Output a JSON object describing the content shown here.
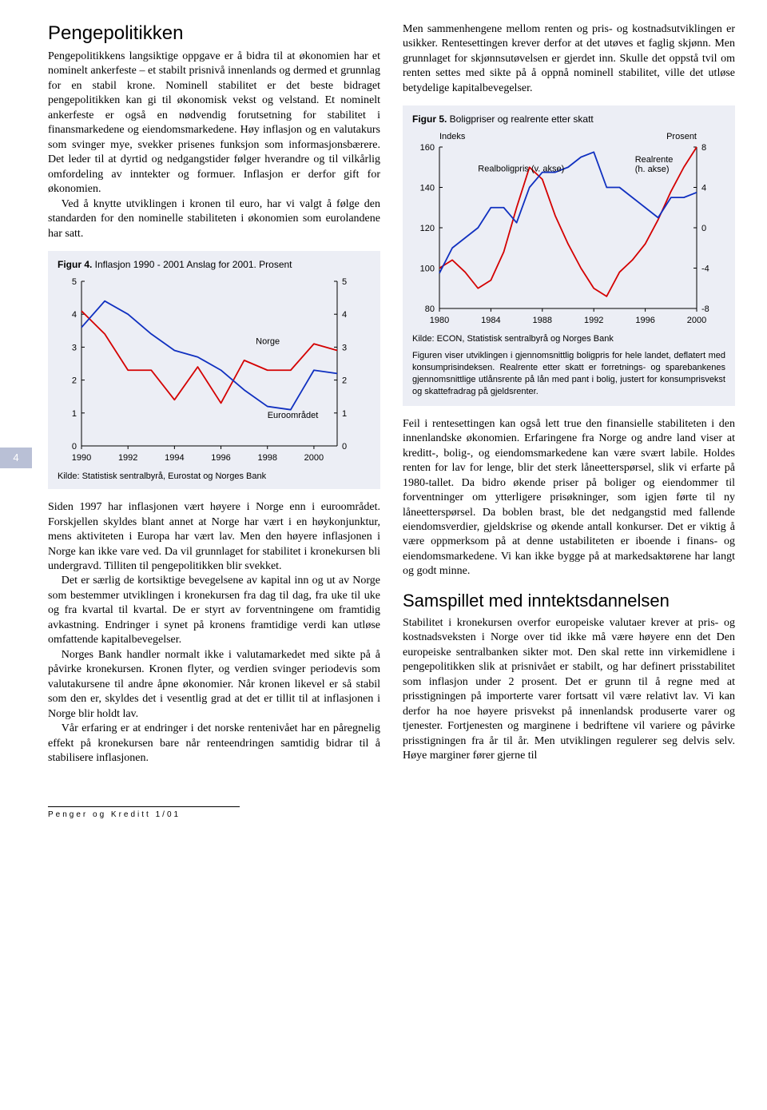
{
  "page_number": "4",
  "left": {
    "heading": "Pengepolitikken",
    "p1": "Pengepolitikkens langsiktige oppgave er å bidra til at økonomien har et nominelt ankerfeste – et stabilt prisnivå innenlands og dermed et grunnlag for en stabil krone. Nominell stabilitet er det beste bidraget pengepolitikken kan gi til økonomisk vekst og velstand. Et nominelt ankerfeste er også en nødvendig forutsetning for stabilitet i finansmarkedene og eiendomsmarkedene. Høy inflasjon og en valutakurs som svinger mye, svekker prisenes funksjon som informasjonsbærere. Det leder til at dyrtid og nedgangstider følger hverandre og til vilkårlig omfordeling av inntekter og formuer. Inflasjon er derfor gift for økonomien.",
    "p2": "Ved å knytte utviklingen i kronen til euro, har vi valgt å følge den standarden for den nominelle stabiliteten i økonomien som eurolandene har satt.",
    "p3": "Siden 1997 har inflasjonen vært høyere i Norge enn i euroområdet. Forskjellen skyldes blant annet at Norge har vært i en høykonjunktur, mens aktiviteten i Europa har vært lav. Men den høyere inflasjonen i Norge kan ikke vare ved. Da vil grunnlaget for stabilitet i kronekursen bli undergravd. Tilliten til pengepolitikken blir svekket.",
    "p4": "Det er særlig de kortsiktige bevegelsene av kapital inn og ut av Norge som bestemmer utviklingen i kronekursen fra dag til dag, fra uke til uke og fra kvartal til kvartal. De er styrt av forventningene om framtidig avkastning. Endringer i synet på kronens framtidige verdi kan utløse omfattende kapitalbevegelser.",
    "p5": "Norges Bank handler normalt ikke i valutamarkedet med sikte på å påvirke kronekursen. Kronen flyter, og verdien svinger periodevis som valutakursene til andre åpne økonomier. Når kronen likevel er så stabil som den er, skyldes det i vesentlig grad at det er tillit til at inflasjonen i Norge blir holdt lav.",
    "p6": "Vår erfaring er at endringer i det norske rentenivået har en påregnelig effekt på kronekursen bare når renteendringen samtidig bidrar til å stabilisere inflasjonen."
  },
  "right": {
    "p1": "Men sammenhengene mellom renten og pris- og kostnadsutviklingen er usikker. Rentesettingen krever derfor at det utøves et faglig skjønn. Men grunnlaget for skjønnsutøvelsen er gjerdet inn. Skulle det oppstå tvil om renten settes med sikte på å oppnå nominell stabilitet, ville det utløse betydelige kapitalbevegelser.",
    "p2": "Feil i rentesettingen kan også lett true den finansielle stabiliteten i den innenlandske økonomien. Erfaringene fra Norge og andre land viser at kreditt-, bolig-, og eiendomsmarkedene kan være svært labile. Holdes renten for lav for lenge, blir det sterk låneetterspørsel, slik vi erfarte på 1980-tallet. Da bidro økende priser på boliger og eiendommer til forventninger om ytterligere prisøkninger, som igjen førte til ny låneetterspørsel. Da boblen brast, ble det nedgangstid med fallende eiendomsverdier, gjeldskrise og økende antall konkurser. Det er viktig å være oppmerksom på at denne ustabiliteten er iboende i finans- og eiendomsmarkedene. Vi kan ikke bygge på at markedsaktørene har langt og godt minne.",
    "heading2": "Samspillet med inntektsdannelsen",
    "p3": "Stabilitet i kronekursen overfor europeiske valutaer krever at pris- og kostnadsveksten i Norge over tid ikke må være høyere enn det Den europeiske sentralbanken sikter mot. Den skal rette inn virkemidlene i pengepolitikken slik at prisnivået er stabilt, og har definert prisstabilitet som inflasjon under 2 prosent. Det er grunn til å regne med at prisstigningen på importerte varer fortsatt vil være relativt lav. Vi kan derfor ha noe høyere prisvekst på innenlandsk produserte varer og tjenester. Fortjenesten og marginene i bedriftene vil variere og påvirke prisstigningen fra år til år. Men utviklingen regulerer seg delvis selv. Høye marginer fører gjerne til"
  },
  "fig4": {
    "title_bold": "Figur 4.",
    "title_rest": " Inflasjon 1990 - 2001 Anslag for 2001. Prosent",
    "type": "line",
    "series_labels": {
      "norge": "Norge",
      "euro": "Euroområdet"
    },
    "colors": {
      "norge": "#d40000",
      "euro": "#1030c0",
      "bg": "#eceef5"
    },
    "x_ticks": [
      1990,
      1992,
      1994,
      1996,
      1998,
      2000
    ],
    "x_range": [
      1990,
      2001
    ],
    "y_ticks_left": [
      0,
      1,
      2,
      3,
      4,
      5
    ],
    "y_ticks_right": [
      0,
      1,
      2,
      3,
      4,
      5
    ],
    "norge": [
      [
        1990,
        4.1
      ],
      [
        1991,
        3.4
      ],
      [
        1992,
        2.3
      ],
      [
        1993,
        2.3
      ],
      [
        1994,
        1.4
      ],
      [
        1995,
        2.4
      ],
      [
        1996,
        1.3
      ],
      [
        1997,
        2.6
      ],
      [
        1998,
        2.3
      ],
      [
        1999,
        2.3
      ],
      [
        2000,
        3.1
      ],
      [
        2001,
        2.9
      ]
    ],
    "euro": [
      [
        1990,
        3.6
      ],
      [
        1991,
        4.4
      ],
      [
        1992,
        4.0
      ],
      [
        1993,
        3.4
      ],
      [
        1994,
        2.9
      ],
      [
        1995,
        2.7
      ],
      [
        1996,
        2.3
      ],
      [
        1997,
        1.7
      ],
      [
        1998,
        1.2
      ],
      [
        1999,
        1.1
      ],
      [
        2000,
        2.3
      ],
      [
        2001,
        2.2
      ]
    ],
    "kilde": "Kilde: Statistisk sentralbyrå, Eurostat og Norges Bank",
    "line_width": 1.8
  },
  "fig5": {
    "title_bold": "Figur 5.",
    "title_rest": " Boligpriser og realrente etter skatt",
    "left_axis_label": "Indeks",
    "right_axis_label": "Prosent",
    "type": "line",
    "colors": {
      "bolig": "#d40000",
      "rente": "#1030c0",
      "bg": "#eceef5"
    },
    "series_labels": {
      "bolig": "Realboligpris (v. akse)",
      "rente": "Realrente (h. akse)"
    },
    "x_ticks": [
      1980,
      1984,
      1988,
      1992,
      1996,
      2000
    ],
    "x_range": [
      1980,
      2000
    ],
    "y_left_ticks": [
      80,
      100,
      120,
      140,
      160
    ],
    "y_right_ticks": [
      -8,
      -4,
      0,
      4,
      8
    ],
    "bolig": [
      [
        1980,
        100
      ],
      [
        1981,
        104
      ],
      [
        1982,
        98
      ],
      [
        1983,
        90
      ],
      [
        1984,
        94
      ],
      [
        1985,
        108
      ],
      [
        1986,
        130
      ],
      [
        1987,
        150
      ],
      [
        1988,
        144
      ],
      [
        1989,
        126
      ],
      [
        1990,
        112
      ],
      [
        1991,
        100
      ],
      [
        1992,
        90
      ],
      [
        1993,
        86
      ],
      [
        1994,
        98
      ],
      [
        1995,
        104
      ],
      [
        1996,
        112
      ],
      [
        1997,
        124
      ],
      [
        1998,
        138
      ],
      [
        1999,
        150
      ],
      [
        2000,
        160
      ]
    ],
    "rente": [
      [
        1980,
        -4.5
      ],
      [
        1981,
        -2.0
      ],
      [
        1982,
        -1.0
      ],
      [
        1983,
        0.0
      ],
      [
        1984,
        2.0
      ],
      [
        1985,
        2.0
      ],
      [
        1986,
        0.5
      ],
      [
        1987,
        4.0
      ],
      [
        1988,
        5.5
      ],
      [
        1989,
        5.5
      ],
      [
        1990,
        6.0
      ],
      [
        1991,
        7.0
      ],
      [
        1992,
        7.5
      ],
      [
        1993,
        4.0
      ],
      [
        1994,
        4.0
      ],
      [
        1995,
        3.0
      ],
      [
        1996,
        2.0
      ],
      [
        1997,
        1.0
      ],
      [
        1998,
        3.0
      ],
      [
        1999,
        3.0
      ],
      [
        2000,
        3.5
      ]
    ],
    "kilde": "Kilde: ECON, Statistisk sentralbyrå og Norges Bank",
    "caption": "Figuren viser utviklingen i gjennomsnittlig boligpris for hele landet, deflatert med konsumprisindeksen. Realrente etter skatt er forretnings- og sparebankenes gjennomsnittlige utlånsrente på lån med pant i bolig, justert for konsumprisvekst og skattefradrag på gjeldsrenter.",
    "line_width": 1.8
  },
  "footer": "Penger og Kreditt 1/01"
}
